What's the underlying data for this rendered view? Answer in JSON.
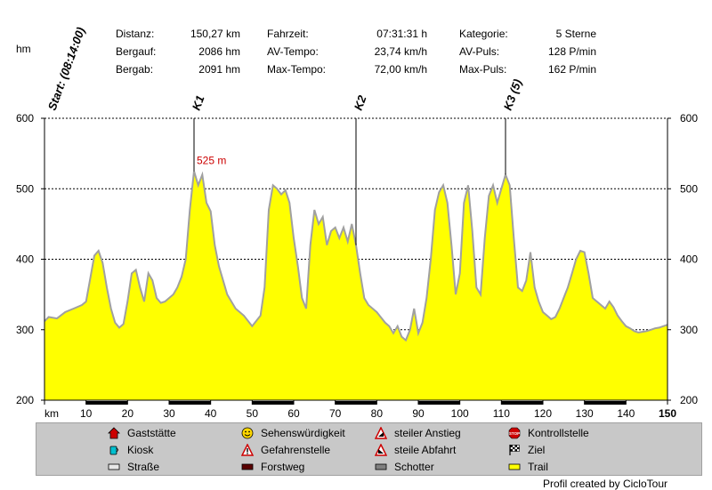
{
  "unit_label": "hm",
  "stats": {
    "col1": [
      {
        "label": "Distanz:",
        "value": "150,27 km"
      },
      {
        "label": "Bergauf:",
        "value": "2086 hm"
      },
      {
        "label": "Bergab:",
        "value": "2091 hm"
      }
    ],
    "col2": [
      {
        "label": "Fahrzeit:",
        "value": "07:31:31 h"
      },
      {
        "label": "AV-Tempo:",
        "value": "23,74 km/h"
      },
      {
        "label": "Max-Tempo:",
        "value": "72,00 km/h"
      }
    ],
    "col3": [
      {
        "label": "Kategorie:",
        "value": "5 Sterne"
      },
      {
        "label": "AV-Puls:",
        "value": "128 P/min"
      },
      {
        "label": "Max-Puls:",
        "value": "162 P/min"
      }
    ]
  },
  "legend": {
    "items": [
      {
        "label": "Gaststätte",
        "icon": "house-icon"
      },
      {
        "label": "Sehenswürdigkeit",
        "icon": "smiley-icon"
      },
      {
        "label": "steiler Anstieg",
        "icon": "steep-climb-icon"
      },
      {
        "label": "Kontrollstelle",
        "icon": "stop-sign-icon"
      },
      {
        "label": "Kiosk",
        "icon": "kiosk-cup-icon"
      },
      {
        "label": "Gefahrenstelle",
        "icon": "warning-icon"
      },
      {
        "label": "steile Abfahrt",
        "icon": "steep-descent-icon"
      },
      {
        "label": "Ziel",
        "icon": "checkered-flag-icon"
      },
      {
        "label": "Straße",
        "icon": "road-swatch-icon"
      },
      {
        "label": "Forstweg",
        "icon": "forest-road-swatch-icon"
      },
      {
        "label": "Schotter",
        "icon": "gravel-swatch-icon"
      },
      {
        "label": "Trail",
        "icon": "trail-swatch-icon"
      }
    ]
  },
  "credit": "Profil created by CicloTour",
  "colors": {
    "fill": "#ffff00",
    "outline": "#a0a0a0",
    "marker_label": "#cc0000",
    "legend_bg": "#c8c8c8"
  },
  "chart_data": {
    "type": "area",
    "xlabel": "km",
    "ylabel": "hm",
    "xlim": [
      0,
      150
    ],
    "ylim": [
      200,
      600
    ],
    "x_ticks": [
      10,
      20,
      30,
      40,
      50,
      60,
      70,
      80,
      90,
      100,
      110,
      120,
      130,
      140,
      150
    ],
    "y_ticks": [
      200,
      300,
      400,
      500,
      600
    ],
    "grid": "dashed horizontal at 300, 400, 500, 600",
    "x": [
      0,
      1,
      3,
      5,
      7,
      9,
      10,
      11,
      12,
      13,
      14,
      15,
      16,
      17,
      18,
      19,
      20,
      21,
      22,
      23,
      24,
      25,
      26,
      27,
      28,
      29,
      30,
      31,
      32,
      33,
      34,
      35,
      36,
      37,
      38,
      39,
      40,
      41,
      42,
      44,
      46,
      48,
      50,
      52,
      53,
      54,
      55,
      56,
      57,
      58,
      59,
      60,
      61,
      62,
      63,
      64,
      65,
      66,
      67,
      68,
      69,
      70,
      71,
      72,
      73,
      74,
      75,
      76,
      77,
      78,
      80,
      82,
      83,
      84,
      85,
      86,
      87,
      88,
      89,
      90,
      91,
      92,
      93,
      94,
      95,
      96,
      97,
      98,
      99,
      100,
      101,
      102,
      103,
      104,
      105,
      106,
      107,
      108,
      109,
      110,
      111,
      112,
      113,
      114,
      115,
      116,
      117,
      118,
      119,
      120,
      121,
      122,
      123,
      124,
      125,
      126,
      127,
      128,
      129,
      130,
      131,
      132,
      133,
      134,
      135,
      136,
      137,
      138,
      139,
      140,
      141,
      142,
      143,
      144,
      145,
      146,
      147,
      148,
      149,
      150
    ],
    "y": [
      312,
      318,
      316,
      325,
      330,
      335,
      340,
      372,
      405,
      412,
      395,
      360,
      330,
      310,
      303,
      308,
      340,
      380,
      385,
      360,
      340,
      380,
      370,
      345,
      338,
      340,
      345,
      350,
      360,
      375,
      400,
      470,
      525,
      505,
      520,
      480,
      468,
      420,
      390,
      350,
      330,
      320,
      305,
      320,
      360,
      470,
      505,
      500,
      492,
      498,
      480,
      430,
      390,
      345,
      330,
      420,
      470,
      450,
      460,
      420,
      440,
      445,
      430,
      445,
      425,
      450,
      420,
      380,
      345,
      335,
      325,
      310,
      305,
      295,
      305,
      290,
      285,
      300,
      330,
      295,
      310,
      345,
      400,
      470,
      495,
      505,
      480,
      420,
      350,
      380,
      480,
      505,
      440,
      360,
      350,
      430,
      490,
      505,
      480,
      500,
      520,
      505,
      430,
      360,
      355,
      370,
      410,
      360,
      340,
      325,
      320,
      315,
      318,
      330,
      345,
      360,
      380,
      400,
      412,
      410,
      380,
      345,
      340,
      335,
      330,
      340,
      332,
      320,
      312,
      305,
      302,
      298,
      296,
      297,
      298,
      300,
      302,
      303,
      305,
      307
    ],
    "markers": [
      {
        "label": "Start: (08:14:00)",
        "x": 0
      },
      {
        "label": "K1",
        "x": 36
      },
      {
        "label": "K2",
        "x": 75
      },
      {
        "label": "K3 (5)",
        "x": 111
      }
    ],
    "annotations": [
      {
        "text": "525 m",
        "x": 36,
        "y": 525
      }
    ],
    "surface_segments": [
      {
        "type": "Forstweg",
        "from": 10,
        "to": 20
      },
      {
        "type": "Forstweg",
        "from": 30,
        "to": 40
      },
      {
        "type": "Forstweg",
        "from": 50,
        "to": 60
      },
      {
        "type": "Forstweg",
        "from": 70,
        "to": 80
      },
      {
        "type": "Forstweg",
        "from": 90,
        "to": 100
      },
      {
        "type": "Forstweg",
        "from": 110,
        "to": 120
      },
      {
        "type": "Forstweg",
        "from": 130,
        "to": 140
      }
    ]
  }
}
